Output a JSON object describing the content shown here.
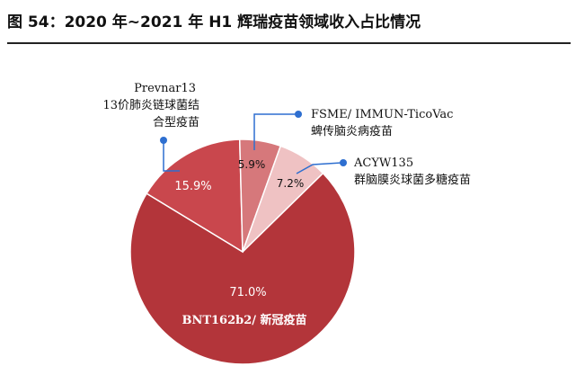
{
  "figure": {
    "title": "图 54：2020 年~2021 年 H1 辉瑞疫苗领域收入占比情况"
  },
  "colors": {
    "slice_bnt": "#B3353A",
    "slice_prevnar": "#C9474D",
    "slice_fsme": "#D6787B",
    "slice_acyw": "#EFC2C3",
    "marker": "#2E6FD0",
    "leader": "#2E6FD0"
  },
  "chart_data": {
    "type": "pie",
    "title": "",
    "slices": [
      {
        "key": "bnt",
        "label": "BNT162b2/ 新冠疫苗",
        "value": 71.0,
        "value_label": "71.0%"
      },
      {
        "key": "prevnar",
        "label_lines": [
          "Prevnar13",
          "13价肺炎链球菌结",
          "合型疫苗"
        ],
        "value": 15.9,
        "value_label": "15.9%"
      },
      {
        "key": "fsme",
        "label_lines": [
          "FSME/ IMMUN-TicoVac",
          "蜱传脑炎病疫苗"
        ],
        "value": 5.9,
        "value_label": "5.9%"
      },
      {
        "key": "acyw",
        "label_lines": [
          "ACYW135",
          "群脑膜炎球菌多糖疫苗"
        ],
        "value": 7.2,
        "value_label": "7.2%"
      }
    ]
  }
}
